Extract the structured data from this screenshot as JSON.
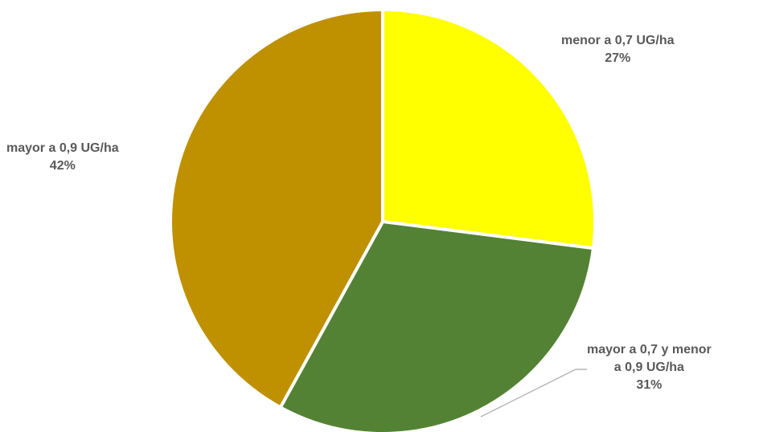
{
  "chart_data": {
    "type": "pie",
    "title": "",
    "slices": [
      {
        "label": "menor a 0,7 UG/ha",
        "value": 27,
        "percent_label": "27%",
        "color": "#FFFF00"
      },
      {
        "label_lines": [
          "mayor a 0,7 y menor",
          "a 0,9 UG/ha"
        ],
        "label": "mayor a 0,7 y menor a 0,9 UG/ha",
        "value": 31,
        "percent_label": "31%",
        "color": "#548235"
      },
      {
        "label": "mayor a 0,9 UG/ha",
        "value": 42,
        "percent_label": "42%",
        "color": "#BF9000"
      }
    ],
    "start_angle": "12 o'clock",
    "direction": "clockwise",
    "legend": "none",
    "data_labels": "category name and percentage"
  }
}
